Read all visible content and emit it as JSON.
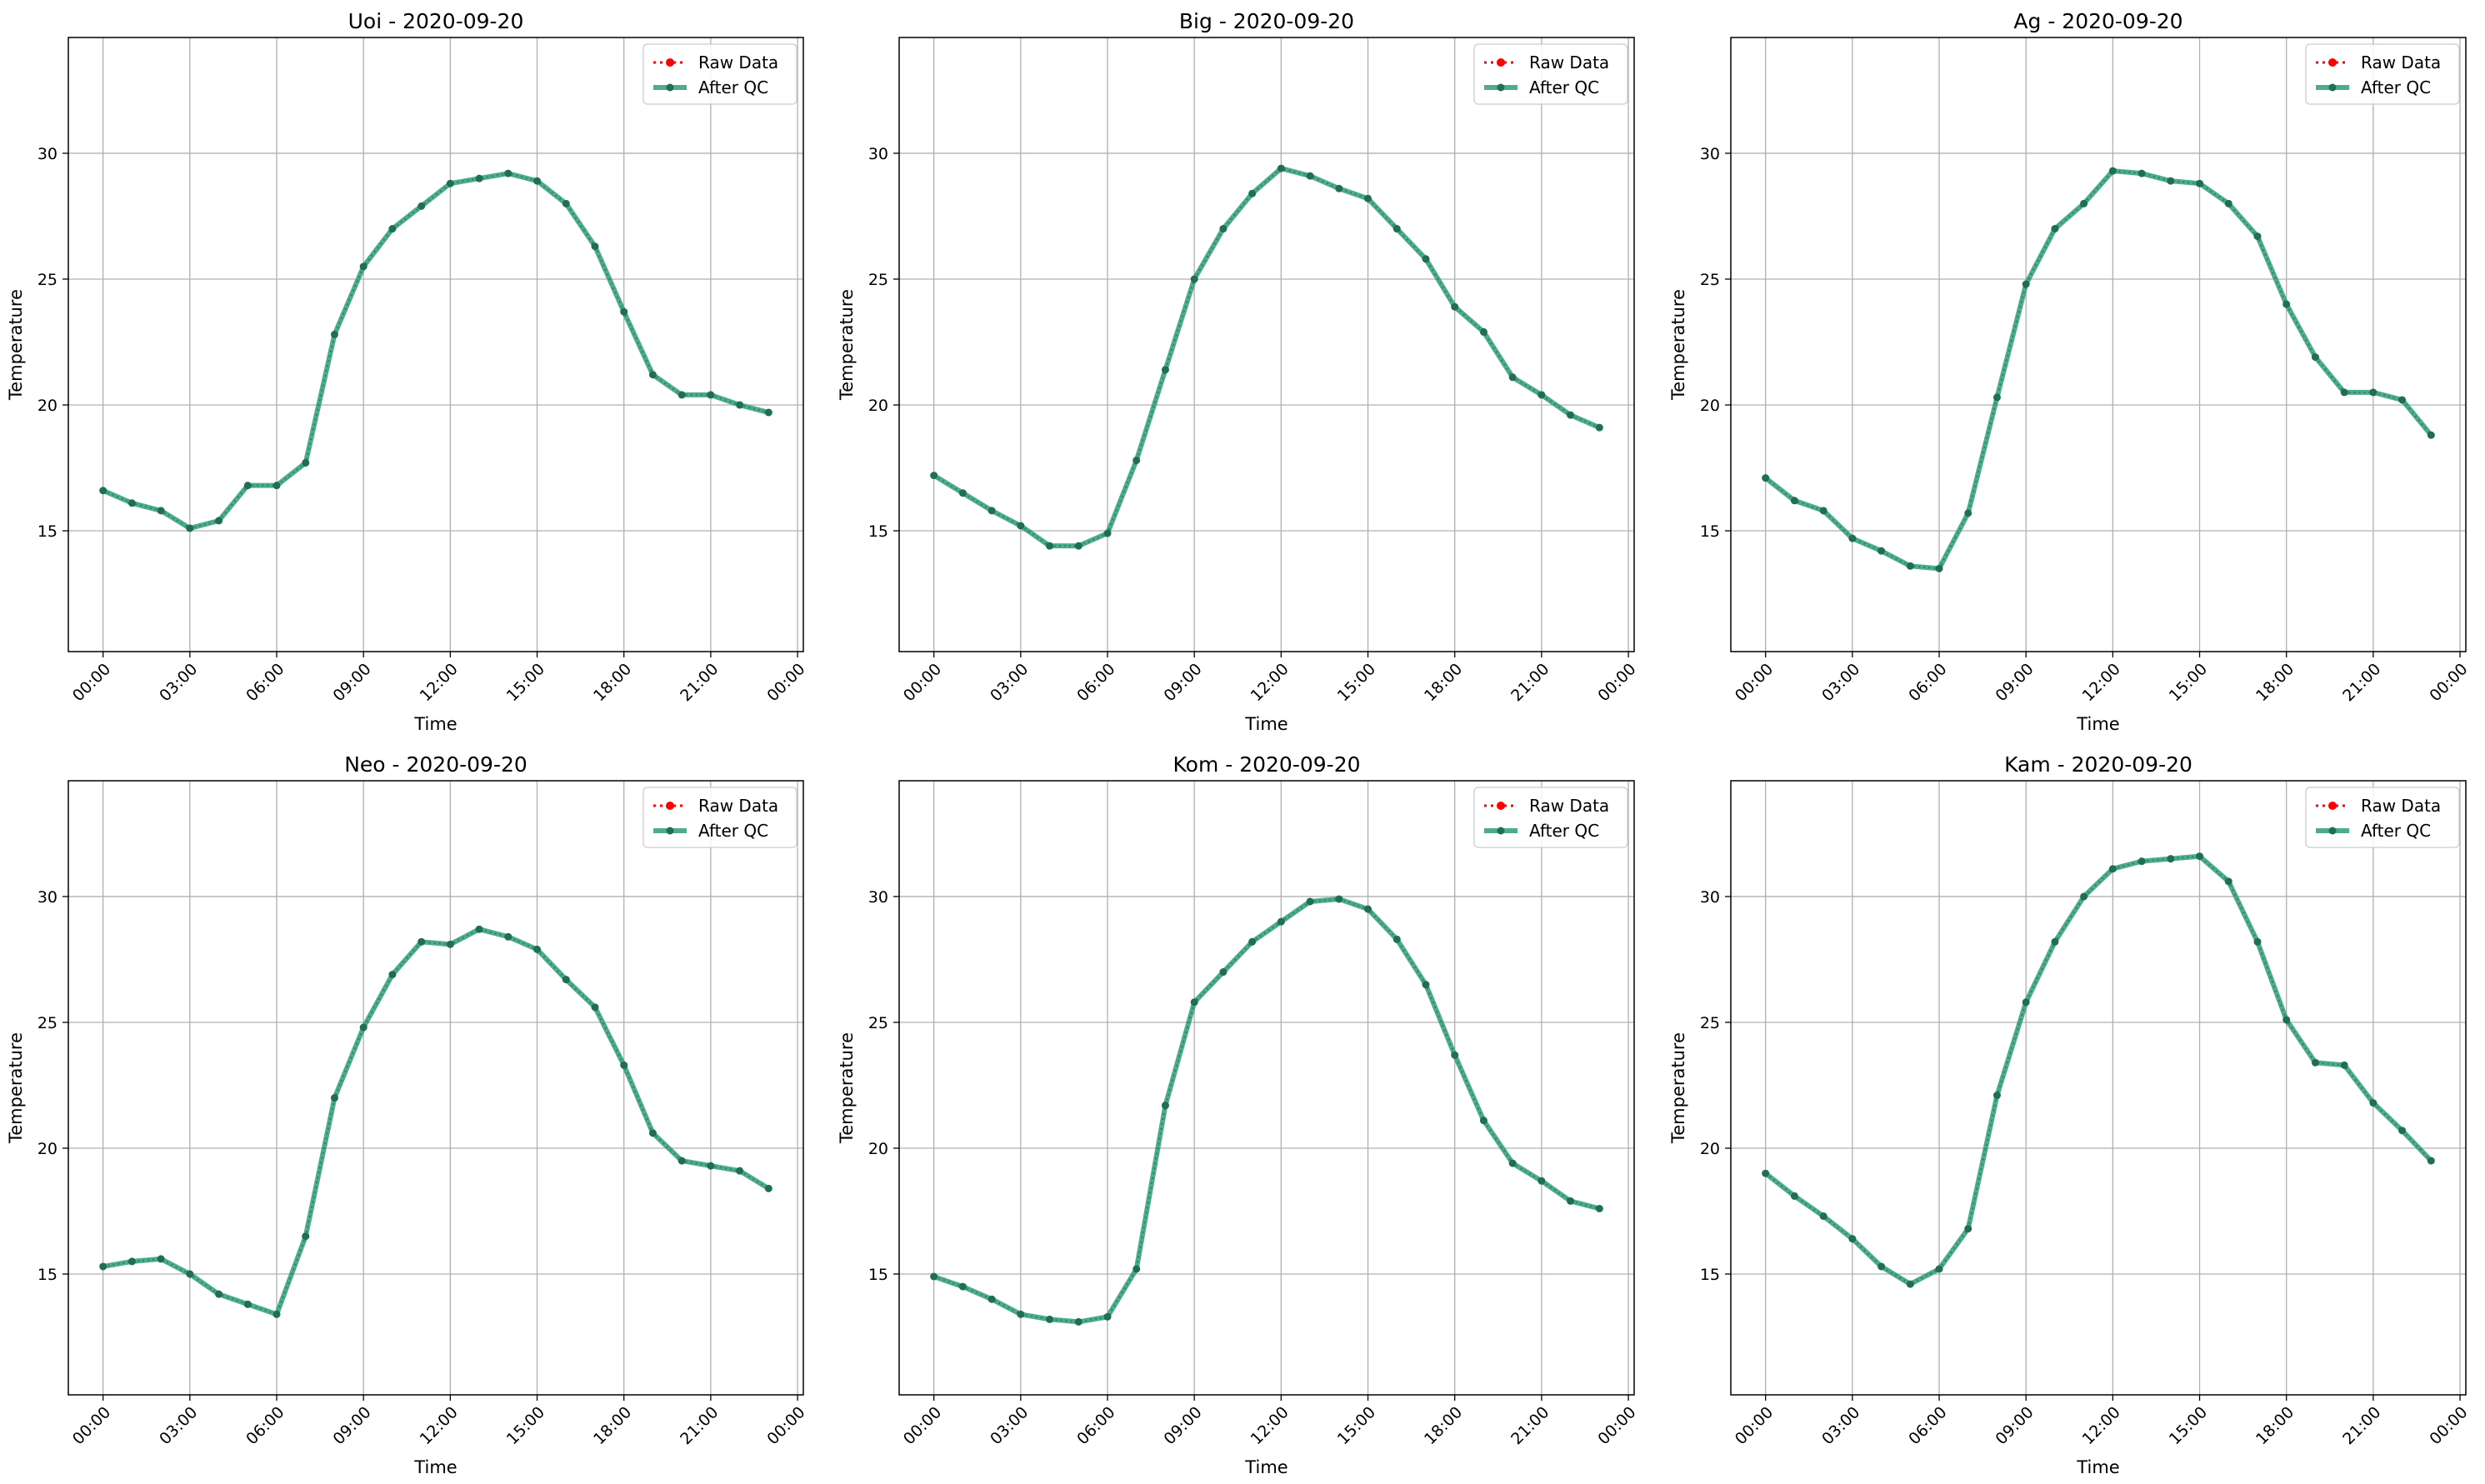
{
  "chart_data": [
    {
      "type": "line",
      "title": "Uoi - 2020-09-20",
      "xlabel": "Time",
      "ylabel": "Temperature",
      "xticks": [
        "00:00",
        "03:00",
        "06:00",
        "09:00",
        "12:00",
        "15:00",
        "18:00",
        "21:00",
        "00:00"
      ],
      "yticks": [
        15,
        20,
        25,
        30
      ],
      "xlim": [
        -1.2,
        24.2
      ],
      "ylim": [
        10.2,
        34.6
      ],
      "grid": true,
      "legend_position": "top-right",
      "x": [
        0,
        1,
        2,
        3,
        4,
        5,
        6,
        7,
        8,
        9,
        10,
        11,
        12,
        13,
        14,
        15,
        16,
        17,
        18,
        19,
        20,
        21,
        22,
        23
      ],
      "series": [
        {
          "name": "Raw Data",
          "values": [
            16.6,
            16.1,
            15.8,
            15.1,
            15.4,
            16.8,
            16.8,
            17.7,
            22.8,
            25.5,
            27.0,
            27.9,
            28.8,
            29.0,
            29.2,
            28.9,
            28.0,
            26.3,
            23.7,
            21.2,
            20.4,
            20.4,
            20.0,
            19.7
          ]
        },
        {
          "name": "After QC",
          "values": [
            16.6,
            16.1,
            15.8,
            15.1,
            15.4,
            16.8,
            16.8,
            17.7,
            22.8,
            25.5,
            27.0,
            27.9,
            28.8,
            29.0,
            29.2,
            28.9,
            28.0,
            26.3,
            23.7,
            21.2,
            20.4,
            20.4,
            20.0,
            19.7
          ]
        }
      ]
    },
    {
      "type": "line",
      "title": "Big - 2020-09-20",
      "xlabel": "Time",
      "ylabel": "Temperature",
      "xticks": [
        "00:00",
        "03:00",
        "06:00",
        "09:00",
        "12:00",
        "15:00",
        "18:00",
        "21:00",
        "00:00"
      ],
      "yticks": [
        15,
        20,
        25,
        30
      ],
      "xlim": [
        -1.2,
        24.2
      ],
      "ylim": [
        10.2,
        34.6
      ],
      "grid": true,
      "legend_position": "top-right",
      "x": [
        0,
        1,
        2,
        3,
        4,
        5,
        6,
        7,
        8,
        9,
        10,
        11,
        12,
        13,
        14,
        15,
        16,
        17,
        18,
        19,
        20,
        21,
        22,
        23
      ],
      "series": [
        {
          "name": "Raw Data",
          "values": [
            17.2,
            16.5,
            15.8,
            15.2,
            14.4,
            14.4,
            14.9,
            17.8,
            21.4,
            25.0,
            27.0,
            28.4,
            29.4,
            29.1,
            28.6,
            28.2,
            27.0,
            25.8,
            23.9,
            22.9,
            21.1,
            20.4,
            19.6,
            19.1
          ]
        },
        {
          "name": "After QC",
          "values": [
            17.2,
            16.5,
            15.8,
            15.2,
            14.4,
            14.4,
            14.9,
            17.8,
            21.4,
            25.0,
            27.0,
            28.4,
            29.4,
            29.1,
            28.6,
            28.2,
            27.0,
            25.8,
            23.9,
            22.9,
            21.1,
            20.4,
            19.6,
            19.1
          ]
        }
      ]
    },
    {
      "type": "line",
      "title": "Ag - 2020-09-20",
      "xlabel": "Time",
      "ylabel": "Temperature",
      "xticks": [
        "00:00",
        "03:00",
        "06:00",
        "09:00",
        "12:00",
        "15:00",
        "18:00",
        "21:00",
        "00:00"
      ],
      "yticks": [
        15,
        20,
        25,
        30
      ],
      "xlim": [
        -1.2,
        24.2
      ],
      "ylim": [
        10.2,
        34.6
      ],
      "grid": true,
      "legend_position": "top-right",
      "x": [
        0,
        1,
        2,
        3,
        4,
        5,
        6,
        7,
        8,
        9,
        10,
        11,
        12,
        13,
        14,
        15,
        16,
        17,
        18,
        19,
        20,
        21,
        22,
        23
      ],
      "series": [
        {
          "name": "Raw Data",
          "values": [
            17.1,
            16.2,
            15.8,
            14.7,
            14.2,
            13.6,
            13.5,
            15.7,
            20.3,
            24.8,
            27.0,
            28.0,
            29.3,
            29.2,
            28.9,
            28.8,
            28.0,
            26.7,
            24.0,
            21.9,
            20.5,
            20.5,
            20.2,
            18.8
          ]
        },
        {
          "name": "After QC",
          "values": [
            17.1,
            16.2,
            15.8,
            14.7,
            14.2,
            13.6,
            13.5,
            15.7,
            20.3,
            24.8,
            27.0,
            28.0,
            29.3,
            29.2,
            28.9,
            28.8,
            28.0,
            26.7,
            24.0,
            21.9,
            20.5,
            20.5,
            20.2,
            18.8
          ]
        }
      ]
    },
    {
      "type": "line",
      "title": "Neo - 2020-09-20",
      "xlabel": "Time",
      "ylabel": "Temperature",
      "xticks": [
        "00:00",
        "03:00",
        "06:00",
        "09:00",
        "12:00",
        "15:00",
        "18:00",
        "21:00",
        "00:00"
      ],
      "yticks": [
        15,
        20,
        25,
        30
      ],
      "xlim": [
        -1.2,
        24.2
      ],
      "ylim": [
        10.2,
        34.6
      ],
      "grid": true,
      "legend_position": "top-right",
      "x": [
        0,
        1,
        2,
        3,
        4,
        5,
        6,
        7,
        8,
        9,
        10,
        11,
        12,
        13,
        14,
        15,
        16,
        17,
        18,
        19,
        20,
        21,
        22,
        23
      ],
      "series": [
        {
          "name": "Raw Data",
          "values": [
            15.3,
            15.5,
            15.6,
            15.0,
            14.2,
            13.8,
            13.4,
            16.5,
            22.0,
            24.8,
            26.9,
            28.2,
            28.1,
            28.7,
            28.4,
            27.9,
            26.7,
            25.6,
            23.3,
            20.6,
            19.5,
            19.3,
            19.1,
            18.4
          ]
        },
        {
          "name": "After QC",
          "values": [
            15.3,
            15.5,
            15.6,
            15.0,
            14.2,
            13.8,
            13.4,
            16.5,
            22.0,
            24.8,
            26.9,
            28.2,
            28.1,
            28.7,
            28.4,
            27.9,
            26.7,
            25.6,
            23.3,
            20.6,
            19.5,
            19.3,
            19.1,
            18.4
          ]
        }
      ]
    },
    {
      "type": "line",
      "title": "Kom - 2020-09-20",
      "xlabel": "Time",
      "ylabel": "Temperature",
      "xticks": [
        "00:00",
        "03:00",
        "06:00",
        "09:00",
        "12:00",
        "15:00",
        "18:00",
        "21:00",
        "00:00"
      ],
      "yticks": [
        15,
        20,
        25,
        30
      ],
      "xlim": [
        -1.2,
        24.2
      ],
      "ylim": [
        10.2,
        34.6
      ],
      "grid": true,
      "legend_position": "top-right",
      "x": [
        0,
        1,
        2,
        3,
        4,
        5,
        6,
        7,
        8,
        9,
        10,
        11,
        12,
        13,
        14,
        15,
        16,
        17,
        18,
        19,
        20,
        21,
        22,
        23
      ],
      "series": [
        {
          "name": "Raw Data",
          "values": [
            14.9,
            14.5,
            14.0,
            13.4,
            13.2,
            13.1,
            13.3,
            15.2,
            21.7,
            25.8,
            27.0,
            28.2,
            29.0,
            29.8,
            29.9,
            29.5,
            28.3,
            26.5,
            23.7,
            21.1,
            19.4,
            18.7,
            17.9,
            17.6
          ]
        },
        {
          "name": "After QC",
          "values": [
            14.9,
            14.5,
            14.0,
            13.4,
            13.2,
            13.1,
            13.3,
            15.2,
            21.7,
            25.8,
            27.0,
            28.2,
            29.0,
            29.8,
            29.9,
            29.5,
            28.3,
            26.5,
            23.7,
            21.1,
            19.4,
            18.7,
            17.9,
            17.6
          ]
        }
      ]
    },
    {
      "type": "line",
      "title": "Kam - 2020-09-20",
      "xlabel": "Time",
      "ylabel": "Temperature",
      "xticks": [
        "00:00",
        "03:00",
        "06:00",
        "09:00",
        "12:00",
        "15:00",
        "18:00",
        "21:00",
        "00:00"
      ],
      "yticks": [
        15,
        20,
        25,
        30
      ],
      "xlim": [
        -1.2,
        24.2
      ],
      "ylim": [
        10.2,
        34.6
      ],
      "grid": true,
      "legend_position": "top-right",
      "x": [
        0,
        1,
        2,
        3,
        4,
        5,
        6,
        7,
        8,
        9,
        10,
        11,
        12,
        13,
        14,
        15,
        16,
        17,
        18,
        19,
        20,
        21,
        22,
        23
      ],
      "series": [
        {
          "name": "Raw Data",
          "values": [
            19.0,
            18.1,
            17.3,
            16.4,
            15.3,
            14.6,
            15.2,
            16.8,
            22.1,
            25.8,
            28.2,
            30.0,
            31.1,
            31.4,
            31.5,
            31.6,
            30.6,
            28.2,
            25.1,
            23.4,
            23.3,
            21.8,
            20.7,
            19.5
          ]
        },
        {
          "name": "After QC",
          "values": [
            19.0,
            18.1,
            17.3,
            16.4,
            15.3,
            14.6,
            15.2,
            16.8,
            22.1,
            25.8,
            28.2,
            30.0,
            31.1,
            31.4,
            31.5,
            31.6,
            30.6,
            28.2,
            25.1,
            23.4,
            23.3,
            21.8,
            20.7,
            19.5
          ]
        }
      ]
    }
  ],
  "colors": {
    "raw": "#ff0000",
    "qc": "#2e9e7a",
    "qc_marker": "#1f6e55",
    "grid": "#b0b0b0",
    "axis": "#000000"
  }
}
